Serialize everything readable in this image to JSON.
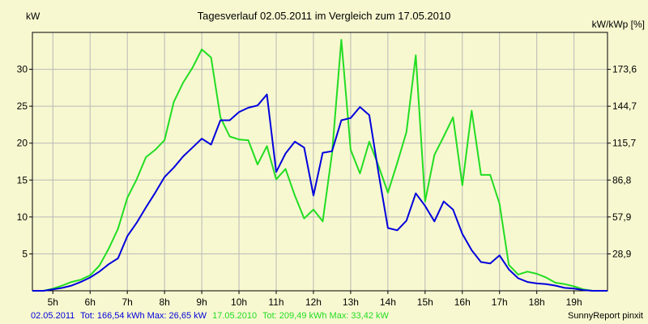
{
  "chart_data": {
    "type": "line",
    "title": "Tagesverlauf 02.05.2011 im Vergleich zum 17.05.2010",
    "y_unit_left": "kW",
    "y_unit_right": "kW/kWp [%]",
    "ylim": [
      0,
      35
    ],
    "xlim": [
      4.45,
      19.9
    ],
    "x_ticks": [
      {
        "x": 5,
        "label": "5h"
      },
      {
        "x": 6,
        "label": "6h"
      },
      {
        "x": 7,
        "label": "7h"
      },
      {
        "x": 8,
        "label": "8h"
      },
      {
        "x": 9,
        "label": "9h"
      },
      {
        "x": 10,
        "label": "10h"
      },
      {
        "x": 11,
        "label": "11h"
      },
      {
        "x": 12,
        "label": "12h"
      },
      {
        "x": 13,
        "label": "13h"
      },
      {
        "x": 14,
        "label": "14h"
      },
      {
        "x": 15,
        "label": "15h"
      },
      {
        "x": 16,
        "label": "16h"
      },
      {
        "x": 17,
        "label": "17h"
      },
      {
        "x": 18,
        "label": "18h"
      },
      {
        "x": 19,
        "label": "19h"
      }
    ],
    "y_ticks_left": [
      {
        "y": 5,
        "label": "5"
      },
      {
        "y": 10,
        "label": "10"
      },
      {
        "y": 15,
        "label": "15"
      },
      {
        "y": 20,
        "label": "20"
      },
      {
        "y": 25,
        "label": "25"
      },
      {
        "y": 30,
        "label": "30"
      }
    ],
    "y_ticks_right": [
      {
        "y": 5,
        "label": "28,9"
      },
      {
        "y": 10,
        "label": "57,9"
      },
      {
        "y": 15,
        "label": "86,8"
      },
      {
        "y": 20,
        "label": "115,7"
      },
      {
        "y": 25,
        "label": "144,7"
      },
      {
        "y": 30,
        "label": "173,6"
      }
    ],
    "grid": true,
    "series": [
      {
        "name": "02.05.2011",
        "color": "#0000DD",
        "x": [
          4.45,
          4.75,
          5.0,
          5.25,
          5.5,
          5.75,
          6.0,
          6.25,
          6.5,
          6.75,
          7.0,
          7.25,
          7.5,
          7.75,
          8.0,
          8.25,
          8.5,
          8.75,
          9.0,
          9.25,
          9.5,
          9.75,
          10.0,
          10.25,
          10.5,
          10.75,
          11.0,
          11.25,
          11.5,
          11.75,
          12.0,
          12.25,
          12.5,
          12.75,
          13.0,
          13.25,
          13.5,
          13.75,
          14.0,
          14.25,
          14.5,
          14.75,
          15.0,
          15.25,
          15.5,
          15.75,
          16.0,
          16.25,
          16.5,
          16.75,
          17.0,
          17.25,
          17.5,
          17.75,
          18.0,
          18.25,
          18.5,
          18.75,
          19.0,
          19.25,
          19.5,
          19.75,
          19.9
        ],
        "values": [
          0,
          0,
          0.2,
          0.4,
          0.7,
          1.2,
          1.8,
          2.6,
          3.6,
          4.4,
          7.4,
          9.2,
          11.3,
          13.3,
          15.4,
          16.7,
          18.2,
          19.4,
          20.6,
          19.8,
          23.1,
          23.1,
          24.2,
          24.8,
          25.1,
          26.6,
          16.1,
          18.6,
          20.2,
          19.4,
          12.9,
          18.7,
          18.9,
          23.1,
          23.4,
          24.9,
          23.8,
          15.9,
          8.5,
          8.2,
          9.5,
          13.2,
          11.5,
          9.4,
          12.1,
          11.0,
          7.7,
          5.5,
          3.9,
          3.7,
          4.8,
          2.9,
          1.7,
          1.2,
          1.0,
          0.9,
          0.7,
          0.4,
          0.3,
          0.1,
          0,
          0,
          0
        ]
      },
      {
        "name": "17.05.2010",
        "color": "#22DD22",
        "x": [
          4.45,
          4.75,
          5.0,
          5.25,
          5.5,
          5.75,
          6.0,
          6.25,
          6.5,
          6.75,
          7.0,
          7.25,
          7.5,
          7.75,
          8.0,
          8.25,
          8.5,
          8.75,
          9.0,
          9.25,
          9.5,
          9.75,
          10.0,
          10.25,
          10.5,
          10.75,
          11.0,
          11.25,
          11.5,
          11.75,
          12.0,
          12.25,
          12.5,
          12.75,
          13.0,
          13.25,
          13.5,
          13.75,
          14.0,
          14.25,
          14.5,
          14.75,
          15.0,
          15.25,
          15.5,
          15.75,
          16.0,
          16.25,
          16.5,
          16.75,
          17.0,
          17.25,
          17.5,
          17.75,
          18.0,
          18.25,
          18.5,
          18.75,
          19.0,
          19.25,
          19.5,
          19.75,
          19.9
        ],
        "values": [
          0,
          0,
          0.3,
          0.7,
          1.2,
          1.5,
          2.1,
          3.4,
          5.7,
          8.4,
          12.6,
          15.1,
          18.1,
          19.1,
          20.4,
          25.6,
          28.2,
          30.2,
          32.7,
          31.6,
          23.5,
          20.9,
          20.5,
          20.4,
          17.1,
          19.6,
          15.1,
          16.5,
          12.9,
          9.8,
          11.0,
          9.4,
          18.6,
          34.0,
          19.1,
          15.9,
          20.2,
          16.9,
          13.3,
          17.3,
          21.5,
          31.9,
          12.1,
          18.4,
          20.9,
          23.5,
          14.3,
          24.4,
          15.7,
          15.7,
          11.8,
          3.5,
          2.2,
          2.6,
          2.3,
          1.8,
          1.1,
          0.9,
          0.6,
          0.2,
          0,
          0,
          0
        ]
      }
    ],
    "footer": {
      "series1_label": "02.05.2011",
      "series1_stats": "Tot: 166,54 kWh Max: 26,65 kW",
      "series2_label": "17.05.2010",
      "series2_stats": "Tot: 209,49 kWh Max: 33,42 kW",
      "credit": "SunnyReport pinxit"
    }
  }
}
